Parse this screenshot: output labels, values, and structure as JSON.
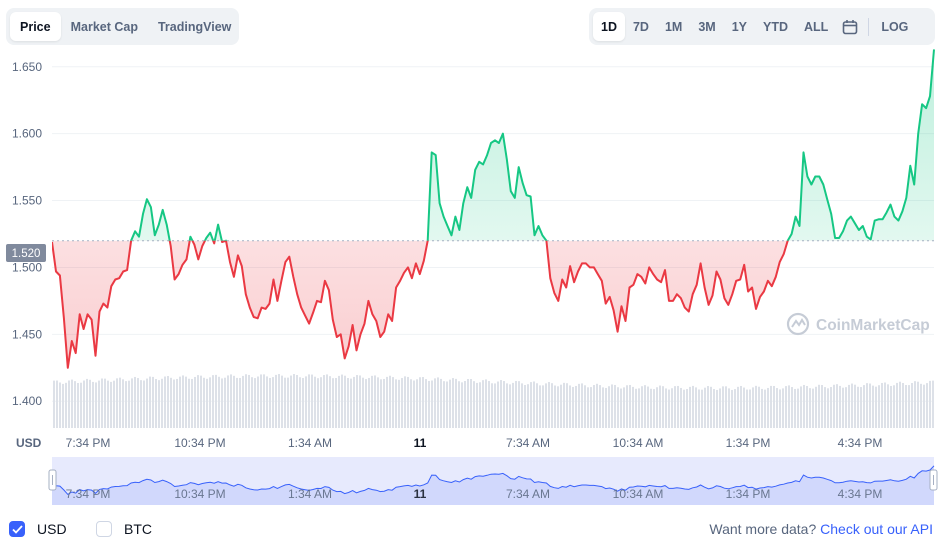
{
  "tabs_left": [
    {
      "label": "Price",
      "active": true
    },
    {
      "label": "Market Cap",
      "active": false
    },
    {
      "label": "TradingView",
      "active": false
    }
  ],
  "tabs_right": [
    "1D",
    "7D",
    "1M",
    "3M",
    "1Y",
    "YTD",
    "ALL"
  ],
  "tabs_right_active": "1D",
  "calendar_icon": "calendar-icon",
  "log_label": "LOG",
  "watermark": "CoinMarketCap",
  "currency_label": "USD",
  "current_price_label": "1.520",
  "bottom": {
    "usd_label": "USD",
    "usd_checked": true,
    "btc_label": "BTC",
    "btc_checked": false,
    "api_text": "Want more data?",
    "api_link": "Check out our API"
  },
  "colors": {
    "up": "#16c784",
    "down": "#ea3943",
    "brand": "#3861fb"
  },
  "chart_data": {
    "type": "line",
    "ylim": [
      1.38,
      1.67
    ],
    "yticks": [
      "1.650",
      "1.600",
      "1.550",
      "1.500",
      "1.450",
      "1.400"
    ],
    "ytick_values": [
      1.65,
      1.6,
      1.55,
      1.5,
      1.45,
      1.4
    ],
    "xticks": [
      "7:34 PM",
      "10:34 PM",
      "1:34 AM",
      "11",
      "7:34 AM",
      "10:34 AM",
      "1:34 PM",
      "4:34 PM"
    ],
    "baseline": 1.52,
    "points": [
      [
        0,
        1.519
      ],
      [
        1,
        1.497
      ],
      [
        2,
        1.494
      ],
      [
        3,
        1.462
      ],
      [
        4,
        1.425
      ],
      [
        5,
        1.445
      ],
      [
        6,
        1.436
      ],
      [
        7,
        1.465
      ],
      [
        8,
        1.454
      ],
      [
        9,
        1.465
      ],
      [
        10,
        1.461
      ],
      [
        11,
        1.434
      ],
      [
        12,
        1.467
      ],
      [
        13,
        1.473
      ],
      [
        14,
        1.47
      ],
      [
        15,
        1.486
      ],
      [
        16,
        1.491
      ],
      [
        17,
        1.492
      ],
      [
        18,
        1.497
      ],
      [
        19,
        1.498
      ],
      [
        20,
        1.52
      ],
      [
        21,
        1.527
      ],
      [
        22,
        1.523
      ],
      [
        23,
        1.54
      ],
      [
        24,
        1.551
      ],
      [
        25,
        1.545
      ],
      [
        26,
        1.524
      ],
      [
        27,
        1.532
      ],
      [
        28,
        1.543
      ],
      [
        29,
        1.532
      ],
      [
        30,
        1.516
      ],
      [
        31,
        1.491
      ],
      [
        32,
        1.495
      ],
      [
        33,
        1.502
      ],
      [
        34,
        1.506
      ],
      [
        35,
        1.523
      ],
      [
        36,
        1.517
      ],
      [
        37,
        1.506
      ],
      [
        38,
        1.516
      ],
      [
        39,
        1.522
      ],
      [
        40,
        1.526
      ],
      [
        41,
        1.518
      ],
      [
        42,
        1.532
      ],
      [
        43,
        1.519
      ],
      [
        44,
        1.52
      ],
      [
        45,
        1.504
      ],
      [
        46,
        1.493
      ],
      [
        47,
        1.509
      ],
      [
        48,
        1.501
      ],
      [
        49,
        1.48
      ],
      [
        50,
        1.47
      ],
      [
        51,
        1.463
      ],
      [
        52,
        1.462
      ],
      [
        53,
        1.47
      ],
      [
        54,
        1.469
      ],
      [
        55,
        1.473
      ],
      [
        56,
        1.491
      ],
      [
        57,
        1.475
      ],
      [
        58,
        1.49
      ],
      [
        59,
        1.504
      ],
      [
        60,
        1.508
      ],
      [
        61,
        1.493
      ],
      [
        62,
        1.48
      ],
      [
        63,
        1.47
      ],
      [
        64,
        1.464
      ],
      [
        65,
        1.458
      ],
      [
        66,
        1.466
      ],
      [
        67,
        1.475
      ],
      [
        68,
        1.474
      ],
      [
        69,
        1.49
      ],
      [
        70,
        1.483
      ],
      [
        71,
        1.461
      ],
      [
        72,
        1.448
      ],
      [
        73,
        1.45
      ],
      [
        74,
        1.432
      ],
      [
        75,
        1.441
      ],
      [
        76,
        1.457
      ],
      [
        77,
        1.438
      ],
      [
        78,
        1.45
      ],
      [
        79,
        1.458
      ],
      [
        80,
        1.475
      ],
      [
        81,
        1.465
      ],
      [
        82,
        1.46
      ],
      [
        83,
        1.448
      ],
      [
        84,
        1.452
      ],
      [
        85,
        1.465
      ],
      [
        86,
        1.46
      ],
      [
        87,
        1.485
      ],
      [
        88,
        1.49
      ],
      [
        89,
        1.496
      ],
      [
        90,
        1.5
      ],
      [
        91,
        1.492
      ],
      [
        92,
        1.503
      ],
      [
        93,
        1.495
      ],
      [
        94,
        1.505
      ],
      [
        95,
        1.52
      ],
      [
        96,
        1.586
      ],
      [
        97,
        1.584
      ],
      [
        98,
        1.548
      ],
      [
        99,
        1.538
      ],
      [
        100,
        1.531
      ],
      [
        101,
        1.524
      ],
      [
        102,
        1.538
      ],
      [
        103,
        1.528
      ],
      [
        104,
        1.548
      ],
      [
        105,
        1.56
      ],
      [
        106,
        1.552
      ],
      [
        107,
        1.573
      ],
      [
        108,
        1.579
      ],
      [
        109,
        1.577
      ],
      [
        110,
        1.584
      ],
      [
        111,
        1.593
      ],
      [
        112,
        1.595
      ],
      [
        113,
        1.593
      ],
      [
        114,
        1.6
      ],
      [
        115,
        1.581
      ],
      [
        116,
        1.557
      ],
      [
        117,
        1.552
      ],
      [
        118,
        1.575
      ],
      [
        119,
        1.563
      ],
      [
        120,
        1.554
      ],
      [
        121,
        1.553
      ],
      [
        122,
        1.524
      ],
      [
        123,
        1.531
      ],
      [
        124,
        1.524
      ],
      [
        125,
        1.52
      ],
      [
        126,
        1.492
      ],
      [
        127,
        1.481
      ],
      [
        128,
        1.475
      ],
      [
        129,
        1.491
      ],
      [
        130,
        1.485
      ],
      [
        131,
        1.501
      ],
      [
        132,
        1.489
      ],
      [
        133,
        1.497
      ],
      [
        134,
        1.503
      ],
      [
        135,
        1.503
      ],
      [
        136,
        1.5
      ],
      [
        137,
        1.5
      ],
      [
        138,
        1.495
      ],
      [
        139,
        1.49
      ],
      [
        140,
        1.473
      ],
      [
        141,
        1.478
      ],
      [
        142,
        1.468
      ],
      [
        143,
        1.452
      ],
      [
        144,
        1.471
      ],
      [
        145,
        1.46
      ],
      [
        146,
        1.485
      ],
      [
        147,
        1.487
      ],
      [
        148,
        1.495
      ],
      [
        149,
        1.493
      ],
      [
        150,
        1.488
      ],
      [
        151,
        1.5
      ],
      [
        152,
        1.495
      ],
      [
        153,
        1.491
      ],
      [
        154,
        1.489
      ],
      [
        155,
        1.498
      ],
      [
        156,
        1.475
      ],
      [
        157,
        1.475
      ],
      [
        158,
        1.48
      ],
      [
        159,
        1.477
      ],
      [
        160,
        1.47
      ],
      [
        161,
        1.467
      ],
      [
        162,
        1.48
      ],
      [
        163,
        1.487
      ],
      [
        164,
        1.503
      ],
      [
        165,
        1.485
      ],
      [
        166,
        1.472
      ],
      [
        167,
        1.479
      ],
      [
        168,
        1.497
      ],
      [
        169,
        1.491
      ],
      [
        170,
        1.477
      ],
      [
        171,
        1.472
      ],
      [
        172,
        1.48
      ],
      [
        173,
        1.49
      ],
      [
        174,
        1.491
      ],
      [
        175,
        1.502
      ],
      [
        176,
        1.482
      ],
      [
        177,
        1.485
      ],
      [
        178,
        1.469
      ],
      [
        179,
        1.478
      ],
      [
        180,
        1.482
      ],
      [
        181,
        1.49
      ],
      [
        182,
        1.486
      ],
      [
        183,
        1.493
      ],
      [
        184,
        1.504
      ],
      [
        185,
        1.51
      ],
      [
        186,
        1.52
      ],
      [
        187,
        1.525
      ],
      [
        188,
        1.538
      ],
      [
        189,
        1.531
      ],
      [
        190,
        1.586
      ],
      [
        191,
        1.568
      ],
      [
        192,
        1.562
      ],
      [
        193,
        1.568
      ],
      [
        194,
        1.568
      ],
      [
        195,
        1.562
      ],
      [
        196,
        1.551
      ],
      [
        197,
        1.54
      ],
      [
        198,
        1.522
      ],
      [
        199,
        1.522
      ],
      [
        200,
        1.527
      ],
      [
        201,
        1.535
      ],
      [
        202,
        1.538
      ],
      [
        203,
        1.533
      ],
      [
        204,
        1.528
      ],
      [
        205,
        1.531
      ],
      [
        206,
        1.523
      ],
      [
        207,
        1.521
      ],
      [
        208,
        1.535
      ],
      [
        209,
        1.536
      ],
      [
        210,
        1.536
      ],
      [
        211,
        1.541
      ],
      [
        212,
        1.547
      ],
      [
        213,
        1.538
      ],
      [
        214,
        1.535
      ],
      [
        215,
        1.542
      ],
      [
        216,
        1.552
      ],
      [
        217,
        1.576
      ],
      [
        218,
        1.562
      ],
      [
        219,
        1.6
      ],
      [
        220,
        1.622
      ],
      [
        221,
        1.619
      ],
      [
        222,
        1.628
      ],
      [
        223,
        1.663
      ]
    ]
  }
}
